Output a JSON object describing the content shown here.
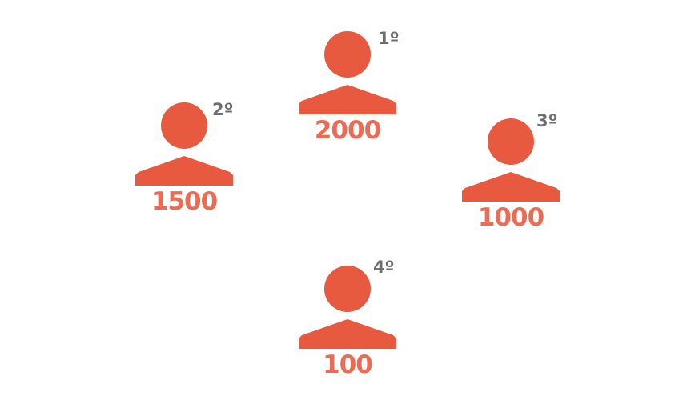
{
  "colors": {
    "figure": "#e75a40",
    "score": "#ea6c55",
    "rank": "#6e6e6e",
    "background": "#ffffff"
  },
  "people": [
    {
      "id": "p1",
      "rank": "1º",
      "score": "2000",
      "icon": "person-icon"
    },
    {
      "id": "p2",
      "rank": "2º",
      "score": "1500",
      "icon": "person-icon"
    },
    {
      "id": "p3",
      "rank": "3º",
      "score": "1000",
      "icon": "person-icon"
    },
    {
      "id": "p4",
      "rank": "4º",
      "score": "100",
      "icon": "person-icon"
    }
  ]
}
